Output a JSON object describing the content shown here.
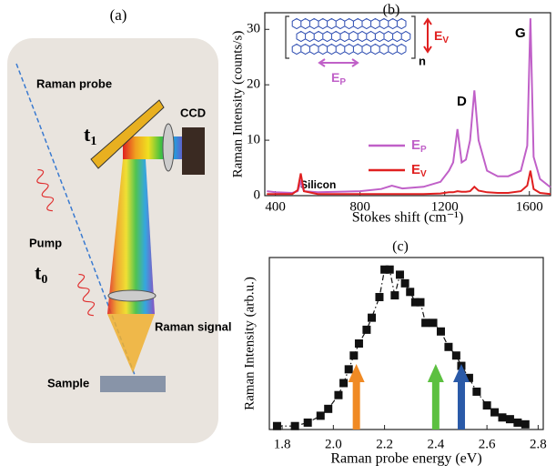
{
  "panel_a": {
    "label": "(a)",
    "probe": "Raman probe",
    "t1": {
      "text": "t",
      "sub": "1"
    },
    "ccd": "CCD",
    "pump": "Pump",
    "t0": {
      "text": "t",
      "sub": "0"
    },
    "signal": "Raman signal",
    "sample": "Sample"
  },
  "chart_data": [
    {
      "type": "line",
      "title": "(b)",
      "x_label": "Stokes shift (cm⁻¹)",
      "y_label": "Raman Intensity (counts/s)",
      "x": [
        360,
        400,
        480,
        505,
        520,
        535,
        600,
        800,
        900,
        950,
        1000,
        1100,
        1180,
        1220,
        1240,
        1260,
        1280,
        1300,
        1320,
        1340,
        1360,
        1400,
        1450,
        1500,
        1560,
        1590,
        1605,
        1620,
        1650,
        1700
      ],
      "series": [
        {
          "name": "E",
          "name_sub": "P",
          "color": "#c060c8",
          "values": [
            0.8,
            0.6,
            0.5,
            0.8,
            2.5,
            0.8,
            0.6,
            0.8,
            1.2,
            1.8,
            1.3,
            1.6,
            2.5,
            4.5,
            6,
            12,
            6,
            6.5,
            10,
            19,
            10,
            4.5,
            3.5,
            3.5,
            4.5,
            9,
            32,
            7,
            3,
            1.5
          ]
        },
        {
          "name": "E",
          "name_sub": "V",
          "color": "#e02020",
          "values": [
            0.3,
            0.3,
            0.3,
            1,
            4,
            0.8,
            0.3,
            0.3,
            0.3,
            0.3,
            0.3,
            0.3,
            0.4,
            0.6,
            0.6,
            0.8,
            0.7,
            0.7,
            0.8,
            1.6,
            0.9,
            0.6,
            0.5,
            0.5,
            0.8,
            1.8,
            4.5,
            1.2,
            0.5,
            0.3
          ]
        }
      ],
      "xlim": [
        350,
        1700
      ],
      "xticks": [
        400,
        800,
        1200,
        1600
      ],
      "ylim": [
        0,
        33
      ],
      "yticks": [
        0,
        10,
        20,
        30
      ],
      "annotations": {
        "silicon": "Silicon",
        "g": "G",
        "d": "D",
        "n": "n",
        "ev": {
          "text": "E",
          "sub": "V"
        },
        "ep": {
          "text": "E",
          "sub": "P"
        }
      }
    },
    {
      "type": "scatter",
      "title": "(c)",
      "x_label": "Raman probe energy (eV)",
      "y_label": "Raman Intensity (arb.u.)",
      "color": "#111111",
      "line_style": "dash-dot",
      "x": [
        1.78,
        1.85,
        1.9,
        1.95,
        1.98,
        2.02,
        2.04,
        2.06,
        2.08,
        2.1,
        2.13,
        2.15,
        2.18,
        2.2,
        2.22,
        2.24,
        2.26,
        2.28,
        2.3,
        2.32,
        2.34,
        2.36,
        2.39,
        2.42,
        2.45,
        2.48,
        2.5,
        2.53,
        2.56,
        2.6,
        2.63,
        2.66,
        2.69,
        2.72,
        2.75
      ],
      "values": [
        0.02,
        0.02,
        0.04,
        0.08,
        0.12,
        0.2,
        0.27,
        0.35,
        0.43,
        0.5,
        0.58,
        0.65,
        0.77,
        0.93,
        0.93,
        0.78,
        0.9,
        0.85,
        0.8,
        0.74,
        0.74,
        0.62,
        0.62,
        0.57,
        0.48,
        0.43,
        0.37,
        0.3,
        0.22,
        0.14,
        0.1,
        0.07,
        0.06,
        0.04,
        0.03
      ],
      "xlim": [
        1.75,
        2.82
      ],
      "xticks": [
        1.8,
        {
          "value": 2,
          "label": "2.0"
        },
        2.2,
        2.4,
        2.6,
        2.8
      ],
      "ylim": [
        0,
        1
      ],
      "arrows": [
        {
          "x": 2.09,
          "color": "#f08a24"
        },
        {
          "x": 2.4,
          "color": "#5cc040"
        },
        {
          "x": 2.5,
          "color": "#2a5aa8"
        }
      ]
    }
  ]
}
